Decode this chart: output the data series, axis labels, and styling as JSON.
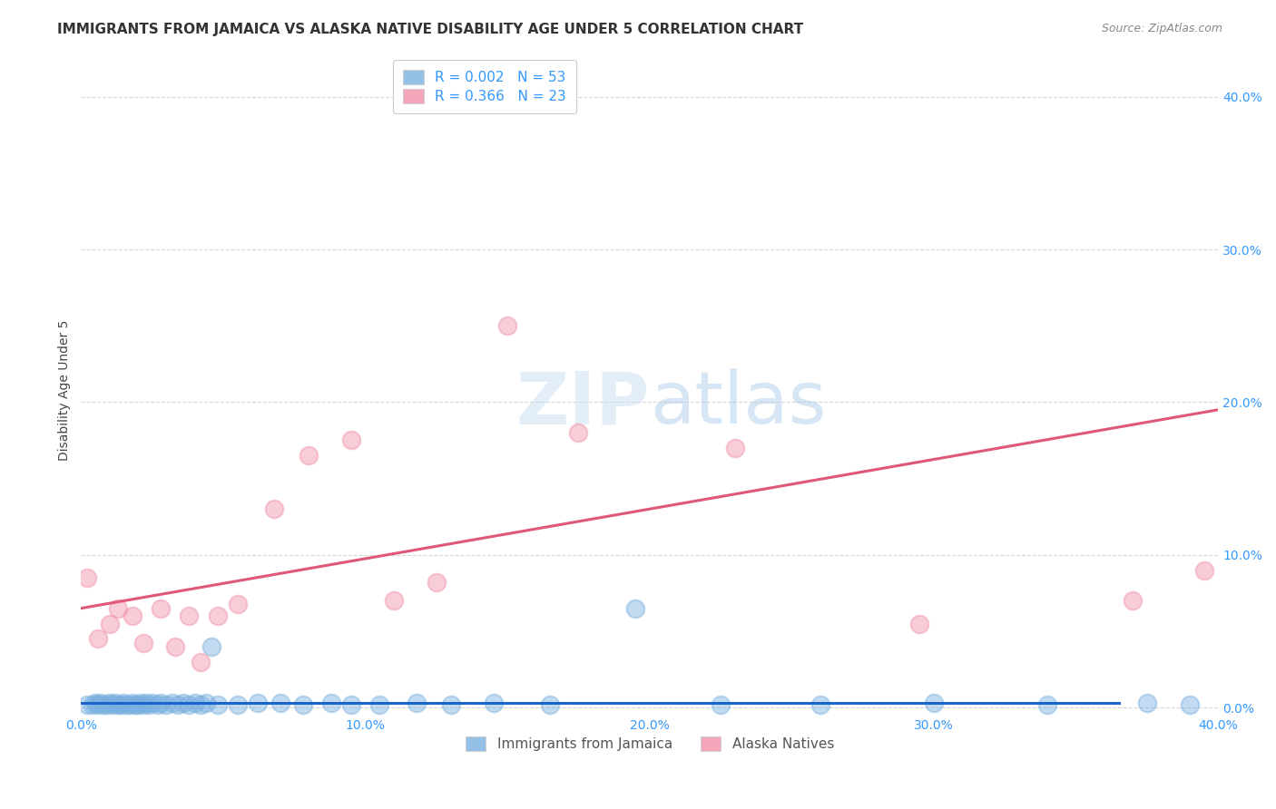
{
  "title": "IMMIGRANTS FROM JAMAICA VS ALASKA NATIVE DISABILITY AGE UNDER 5 CORRELATION CHART",
  "source": "Source: ZipAtlas.com",
  "ylabel": "Disability Age Under 5",
  "xlim": [
    0.0,
    0.4
  ],
  "ylim": [
    -0.005,
    0.42
  ],
  "legend_entries": [
    {
      "label": "R = 0.002   N = 53",
      "color": "#a8c8f0"
    },
    {
      "label": "R = 0.366   N = 23",
      "color": "#f0a8c0"
    }
  ],
  "legend_r_color": "#3399ff",
  "watermark": "ZIPatlas",
  "background_color": "#ffffff",
  "grid_color": "#d8d8d8",
  "blue_scatter_x": [
    0.002,
    0.004,
    0.005,
    0.006,
    0.007,
    0.008,
    0.009,
    0.01,
    0.011,
    0.012,
    0.013,
    0.014,
    0.015,
    0.016,
    0.017,
    0.018,
    0.019,
    0.02,
    0.021,
    0.022,
    0.023,
    0.024,
    0.025,
    0.027,
    0.028,
    0.03,
    0.032,
    0.034,
    0.036,
    0.038,
    0.04,
    0.042,
    0.044,
    0.046,
    0.048,
    0.055,
    0.062,
    0.07,
    0.078,
    0.088,
    0.095,
    0.105,
    0.118,
    0.13,
    0.145,
    0.165,
    0.195,
    0.225,
    0.26,
    0.3,
    0.34,
    0.375,
    0.39
  ],
  "blue_scatter_y": [
    0.002,
    0.002,
    0.003,
    0.002,
    0.003,
    0.002,
    0.002,
    0.003,
    0.002,
    0.003,
    0.002,
    0.002,
    0.003,
    0.002,
    0.002,
    0.003,
    0.002,
    0.002,
    0.003,
    0.002,
    0.003,
    0.002,
    0.003,
    0.002,
    0.003,
    0.002,
    0.003,
    0.002,
    0.003,
    0.002,
    0.003,
    0.002,
    0.003,
    0.04,
    0.002,
    0.002,
    0.003,
    0.003,
    0.002,
    0.003,
    0.002,
    0.002,
    0.003,
    0.002,
    0.003,
    0.002,
    0.065,
    0.002,
    0.002,
    0.003,
    0.002,
    0.003,
    0.002
  ],
  "pink_scatter_x": [
    0.002,
    0.006,
    0.01,
    0.013,
    0.018,
    0.022,
    0.028,
    0.033,
    0.038,
    0.042,
    0.048,
    0.055,
    0.068,
    0.08,
    0.095,
    0.11,
    0.125,
    0.15,
    0.175,
    0.23,
    0.295,
    0.37,
    0.395
  ],
  "pink_scatter_y": [
    0.085,
    0.045,
    0.055,
    0.065,
    0.06,
    0.042,
    0.065,
    0.04,
    0.06,
    0.03,
    0.06,
    0.068,
    0.13,
    0.165,
    0.175,
    0.07,
    0.082,
    0.25,
    0.18,
    0.17,
    0.055,
    0.07,
    0.09
  ],
  "blue_line_x": [
    0.0,
    0.365
  ],
  "blue_line_y": [
    0.003,
    0.003
  ],
  "pink_line_x": [
    0.0,
    0.4
  ],
  "pink_line_y": [
    0.065,
    0.195
  ],
  "blue_scatter_color": "#7ab0e0",
  "pink_scatter_color": "#f090a8",
  "blue_line_color": "#1a66cc",
  "pink_line_color": "#e05878",
  "scatter_size": 200,
  "scatter_alpha": 0.45,
  "title_fontsize": 11,
  "axis_label_fontsize": 10,
  "tick_fontsize": 10,
  "source_fontsize": 9
}
